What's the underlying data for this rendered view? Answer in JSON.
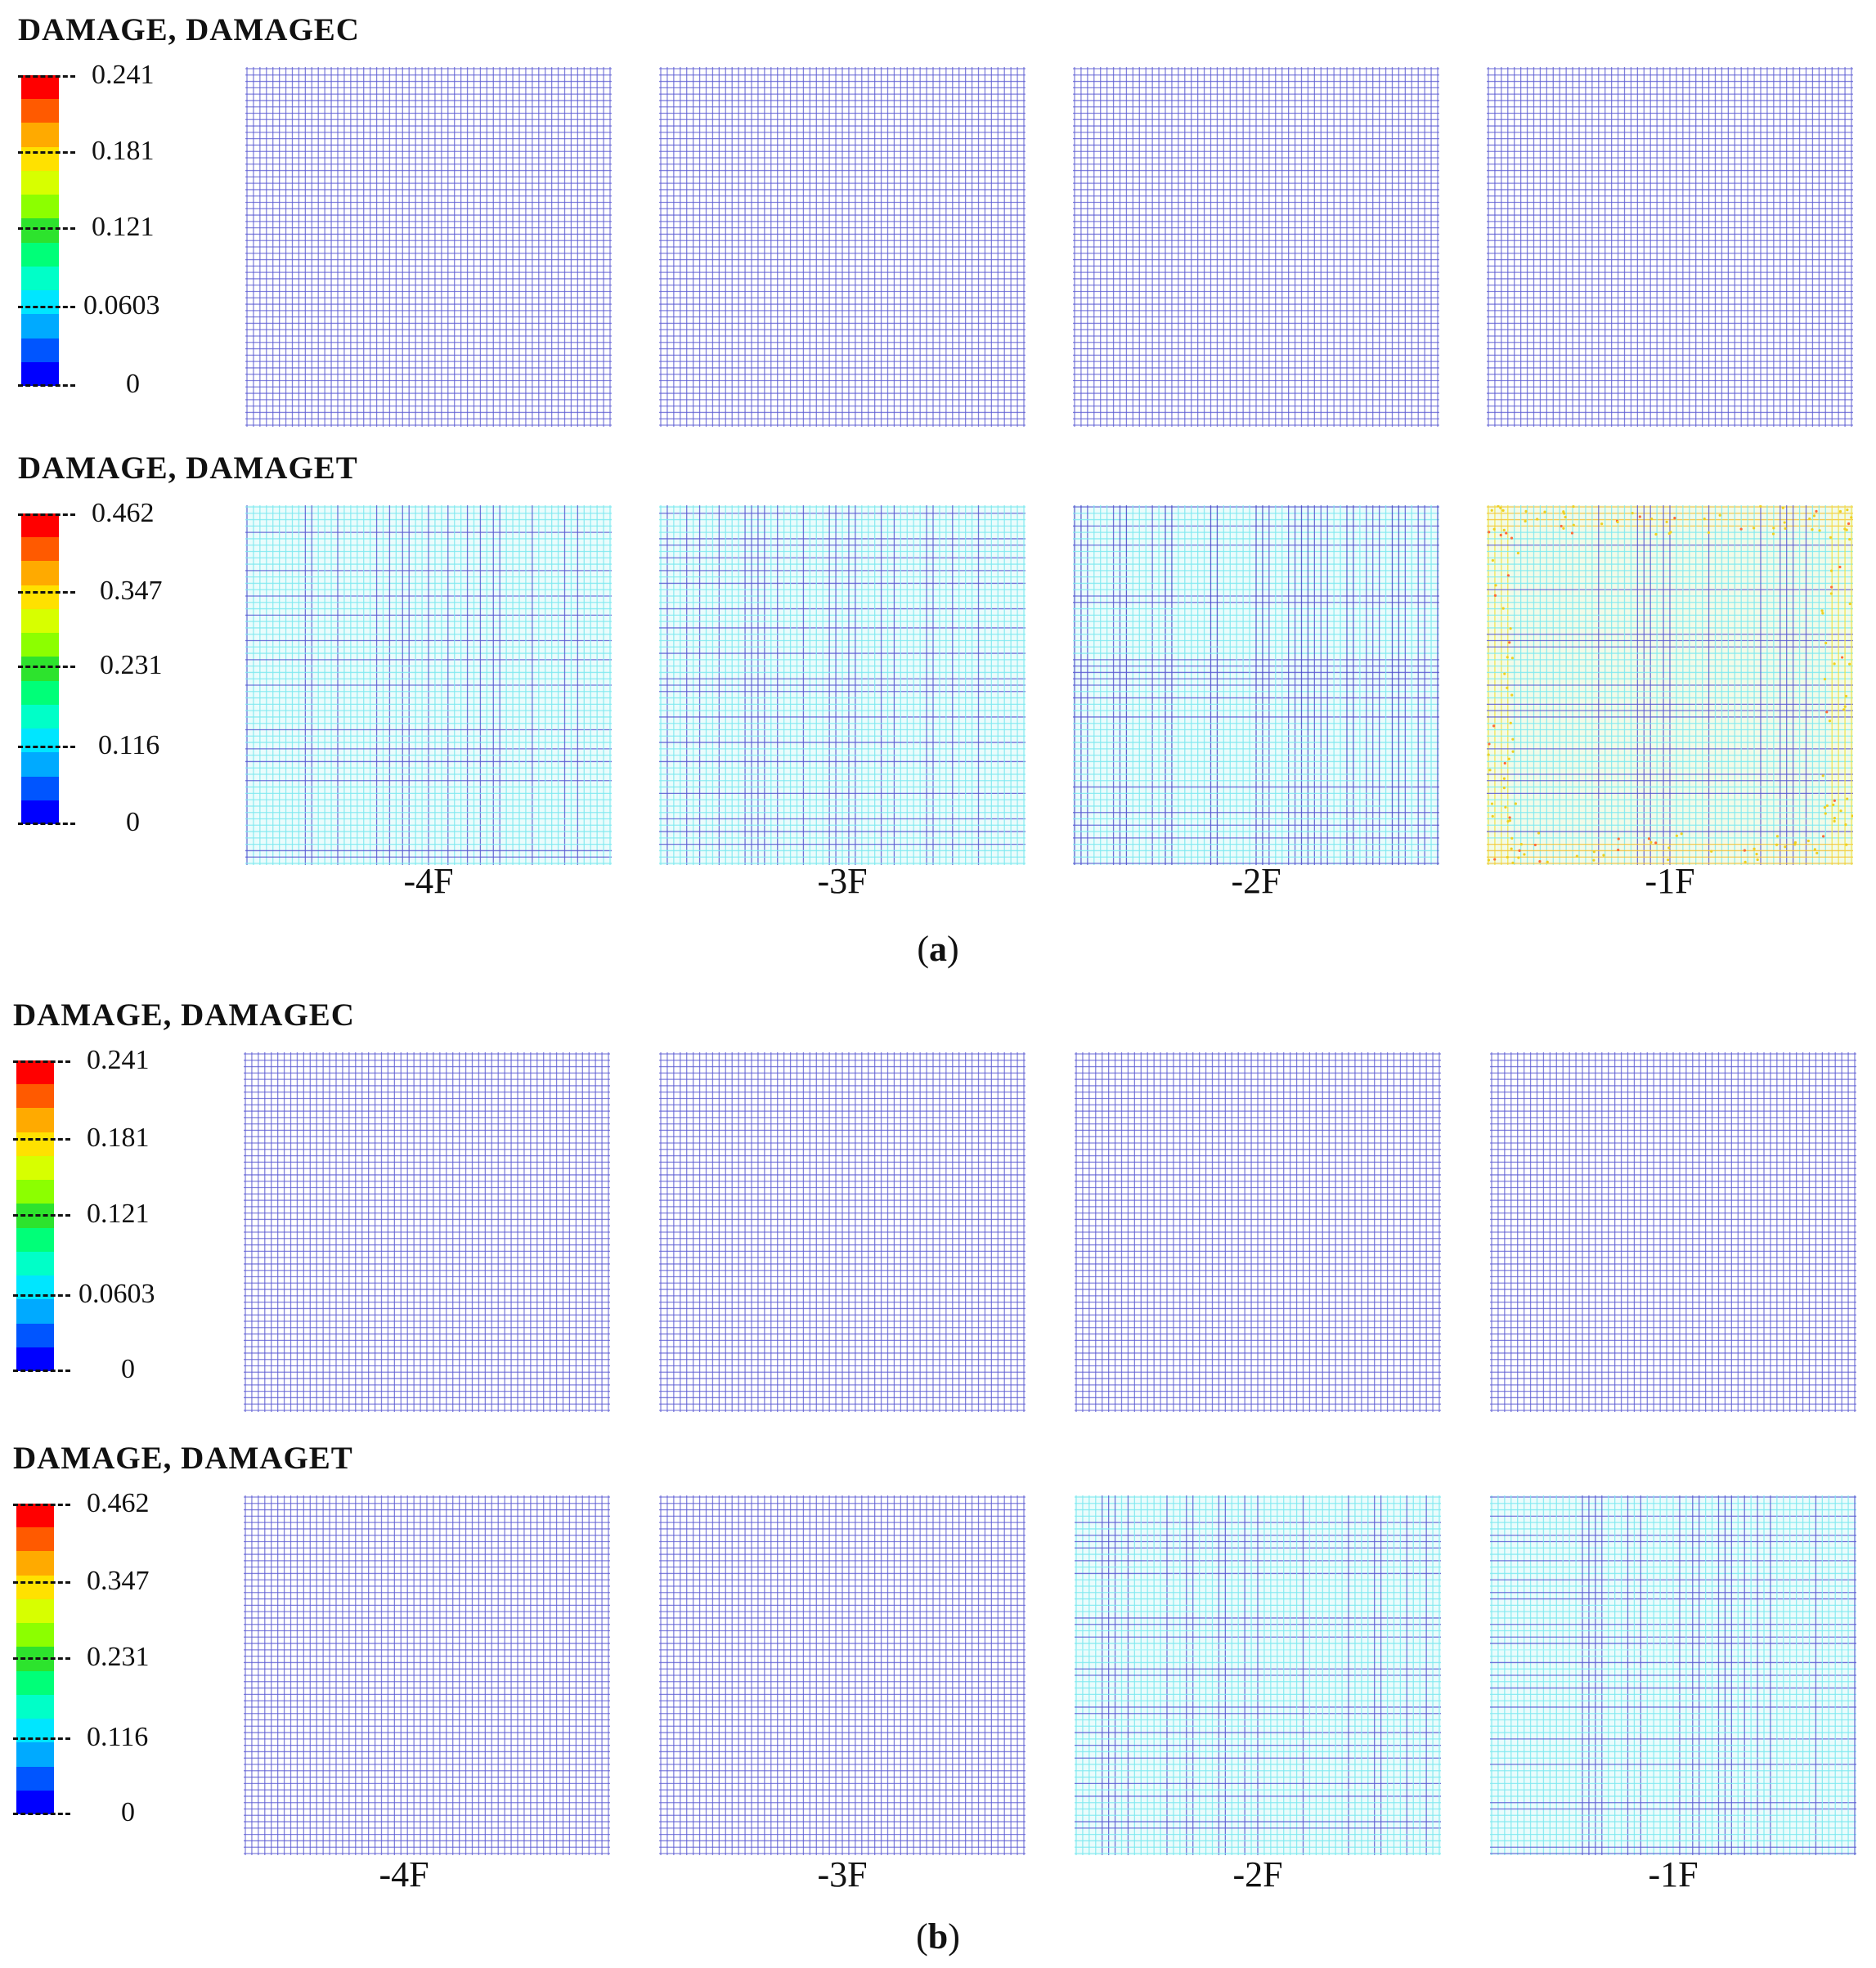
{
  "colors": {
    "legend_scale": [
      "#ff0000",
      "#ff5a00",
      "#ffaa00",
      "#ffe100",
      "#d7ff00",
      "#8cff00",
      "#2de32d",
      "#00ff78",
      "#00ffc8",
      "#00e6ff",
      "#00aaff",
      "#0055ff",
      "#0000ff"
    ],
    "mesh_base": "#5a5ad2",
    "mesh_light": "#7fe9f0"
  },
  "parts": [
    {
      "caption_letter": "a",
      "caption_open": "(",
      "caption_close": ")",
      "rows": [
        {
          "title": "DAMAGE, DAMAGEC",
          "legend_ticks": [
            "0.241",
            "0.181",
            "0.121",
            "0.0603",
            "0"
          ],
          "panels": [
            {
              "floor": "-4F",
              "pattern": "uniform"
            },
            {
              "floor": "-3F",
              "pattern": "uniform"
            },
            {
              "floor": "-2F",
              "pattern": "uniform"
            },
            {
              "floor": "-1F",
              "pattern": "uniform"
            }
          ]
        },
        {
          "title": "DAMAGE, DAMAGET",
          "legend_ticks": [
            "0.462",
            "0.347",
            "0.231",
            "0.116",
            "0"
          ],
          "panels": [
            {
              "floor": "-4F",
              "pattern": "cyan-speckled"
            },
            {
              "floor": "-3F",
              "pattern": "cyan-speckled"
            },
            {
              "floor": "-2F",
              "pattern": "cyan-columns"
            },
            {
              "floor": "-1F",
              "pattern": "yellow-edges"
            }
          ]
        }
      ],
      "floor_labels": [
        "-4F",
        "-3F",
        "-2F",
        "-1F"
      ]
    },
    {
      "caption_letter": "b",
      "caption_open": "(",
      "caption_close": ")",
      "rows": [
        {
          "title": "DAMAGE, DAMAGEC",
          "legend_ticks": [
            "0.241",
            "0.181",
            "0.121",
            "0.0603",
            "0"
          ],
          "panels": [
            {
              "floor": "-4F",
              "pattern": "uniform"
            },
            {
              "floor": "-3F",
              "pattern": "uniform"
            },
            {
              "floor": "-2F",
              "pattern": "uniform"
            },
            {
              "floor": "-1F",
              "pattern": "uniform"
            }
          ]
        },
        {
          "title": "DAMAGE, DAMAGET",
          "legend_ticks": [
            "0.462",
            "0.347",
            "0.231",
            "0.116",
            "0"
          ],
          "panels": [
            {
              "floor": "-4F",
              "pattern": "uniform"
            },
            {
              "floor": "-3F",
              "pattern": "uniform"
            },
            {
              "floor": "-2F",
              "pattern": "cyan-grid"
            },
            {
              "floor": "-1F",
              "pattern": "cyan-grid"
            }
          ]
        }
      ],
      "floor_labels": [
        "-4F",
        "-3F",
        "-2F",
        "-1F"
      ]
    }
  ]
}
